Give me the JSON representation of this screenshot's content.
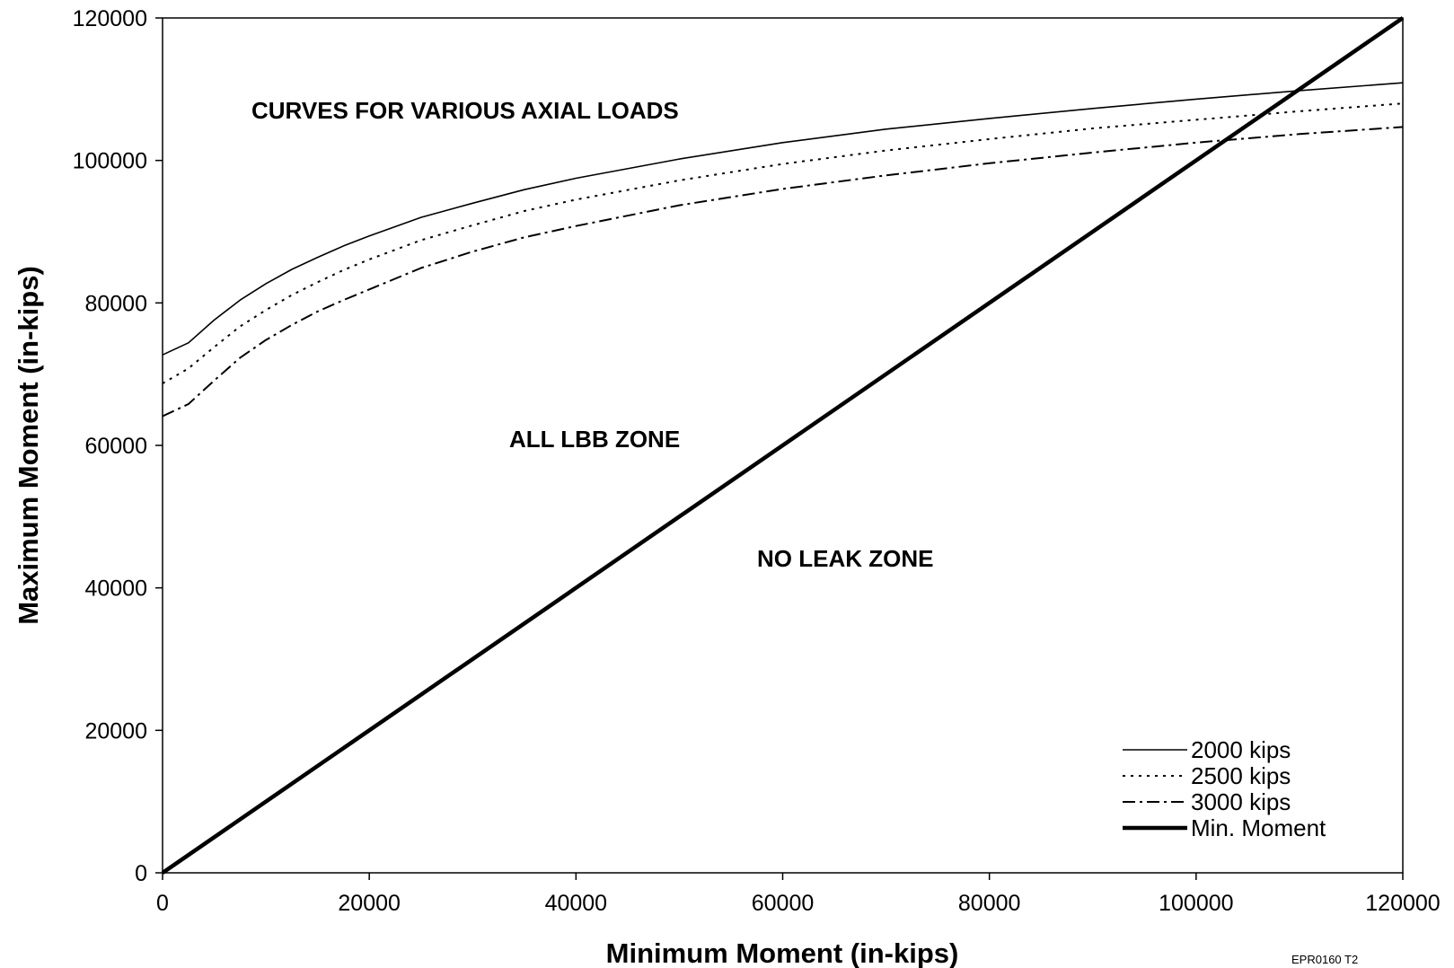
{
  "chart_data": {
    "type": "line",
    "xlabel": "Minimum Moment (in-kips)",
    "ylabel": "Maximum Moment (in-kips)",
    "xlim": [
      0,
      120000
    ],
    "ylim": [
      0,
      120000
    ],
    "xticks": [
      0,
      20000,
      40000,
      60000,
      80000,
      100000,
      120000
    ],
    "yticks": [
      0,
      20000,
      40000,
      60000,
      80000,
      100000,
      120000
    ],
    "grid": false,
    "legend_position": "bottom-right",
    "annotations": [
      {
        "text": "CURVES FOR VARIOUS AXIAL LOADS",
        "x": 8500,
        "y": 107500
      },
      {
        "text": "ALL LBB ZONE",
        "x": 33500,
        "y": 61500
      },
      {
        "text": "NO LEAK ZONE",
        "x": 57500,
        "y": 44500
      }
    ],
    "figure_id": "EPR0160 T2",
    "series": [
      {
        "name": "2000 kips",
        "style": "solid",
        "x": [
          0,
          2500,
          5000,
          7500,
          10000,
          12500,
          15000,
          17500,
          20000,
          25000,
          30000,
          35000,
          40000,
          50000,
          60000,
          70000,
          80000,
          90000,
          100000,
          110000,
          120000
        ],
        "y": [
          72700,
          74400,
          77600,
          80400,
          82700,
          84700,
          86400,
          88000,
          89400,
          92000,
          94000,
          95900,
          97500,
          100200,
          102500,
          104400,
          105900,
          107300,
          108600,
          109800,
          110900
        ]
      },
      {
        "name": "2500 kips",
        "style": "dotted",
        "x": [
          0,
          2500,
          5000,
          7500,
          10000,
          12500,
          15000,
          17500,
          20000,
          25000,
          30000,
          35000,
          40000,
          50000,
          60000,
          70000,
          80000,
          90000,
          100000,
          110000,
          120000
        ],
        "y": [
          68700,
          70800,
          73800,
          76700,
          79000,
          81100,
          82900,
          84600,
          86100,
          88800,
          90900,
          92900,
          94500,
          97200,
          99500,
          101400,
          103000,
          104500,
          105700,
          106900,
          108000
        ]
      },
      {
        "name": "3000 kips",
        "style": "dashdot",
        "x": [
          0,
          2500,
          5000,
          7500,
          10000,
          12500,
          15000,
          17500,
          20000,
          25000,
          30000,
          35000,
          40000,
          50000,
          60000,
          70000,
          80000,
          90000,
          100000,
          110000,
          120000
        ],
        "y": [
          64100,
          65800,
          69100,
          72300,
          74800,
          76900,
          78800,
          80400,
          81900,
          84900,
          87200,
          89200,
          90800,
          93700,
          96000,
          97900,
          99600,
          101100,
          102500,
          103700,
          104700
        ]
      },
      {
        "name": "Min. Moment",
        "style": "thick",
        "x": [
          0,
          120000
        ],
        "y": [
          0,
          120000
        ]
      }
    ]
  }
}
